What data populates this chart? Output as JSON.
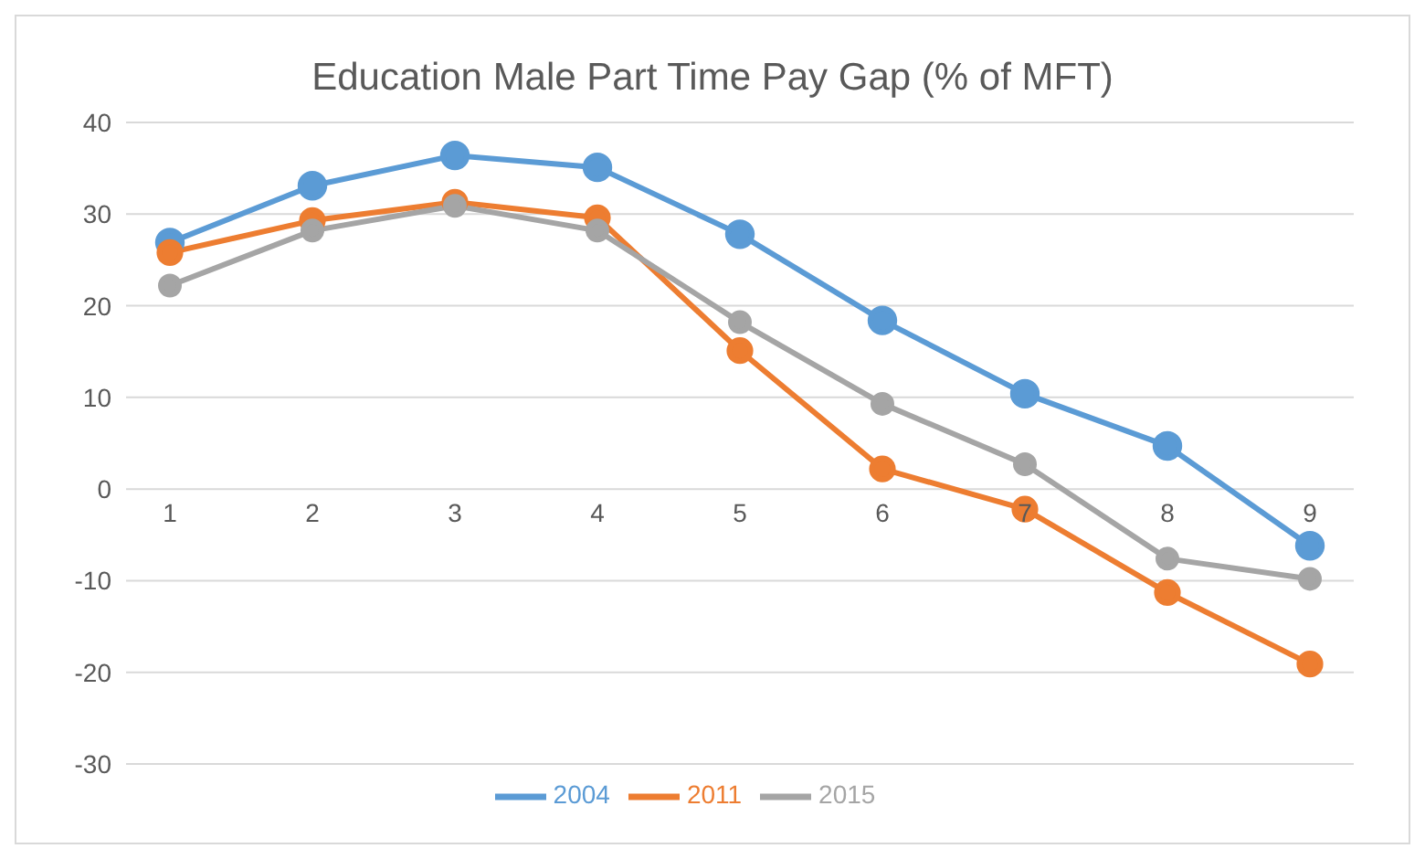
{
  "chart_data": {
    "type": "line",
    "title": "Education  Male Part Time Pay Gap (% of MFT)",
    "categories": [
      "1",
      "2",
      "3",
      "4",
      "5",
      "6",
      "7",
      "8",
      "9"
    ],
    "series": [
      {
        "name": "2004",
        "color": "#5b9bd5",
        "values": [
          26.9,
          33.1,
          36.4,
          35.1,
          27.8,
          18.4,
          10.4,
          4.7,
          -6.2
        ]
      },
      {
        "name": "2011",
        "color": "#ed7d31",
        "values": [
          25.8,
          29.3,
          31.3,
          29.6,
          15.1,
          2.2,
          -2.2,
          -11.3,
          -19.1
        ]
      },
      {
        "name": "2015",
        "color": "#a5a5a5",
        "values": [
          22.2,
          28.2,
          30.9,
          28.2,
          18.2,
          9.3,
          2.7,
          -7.6,
          -9.8
        ]
      }
    ],
    "ylim": [
      -30,
      40
    ],
    "yticks": [
      -30,
      -20,
      -10,
      0,
      10,
      20,
      30,
      40
    ],
    "grid": "y",
    "legend": "bottom",
    "marker": "circle",
    "line_style": "solid"
  }
}
